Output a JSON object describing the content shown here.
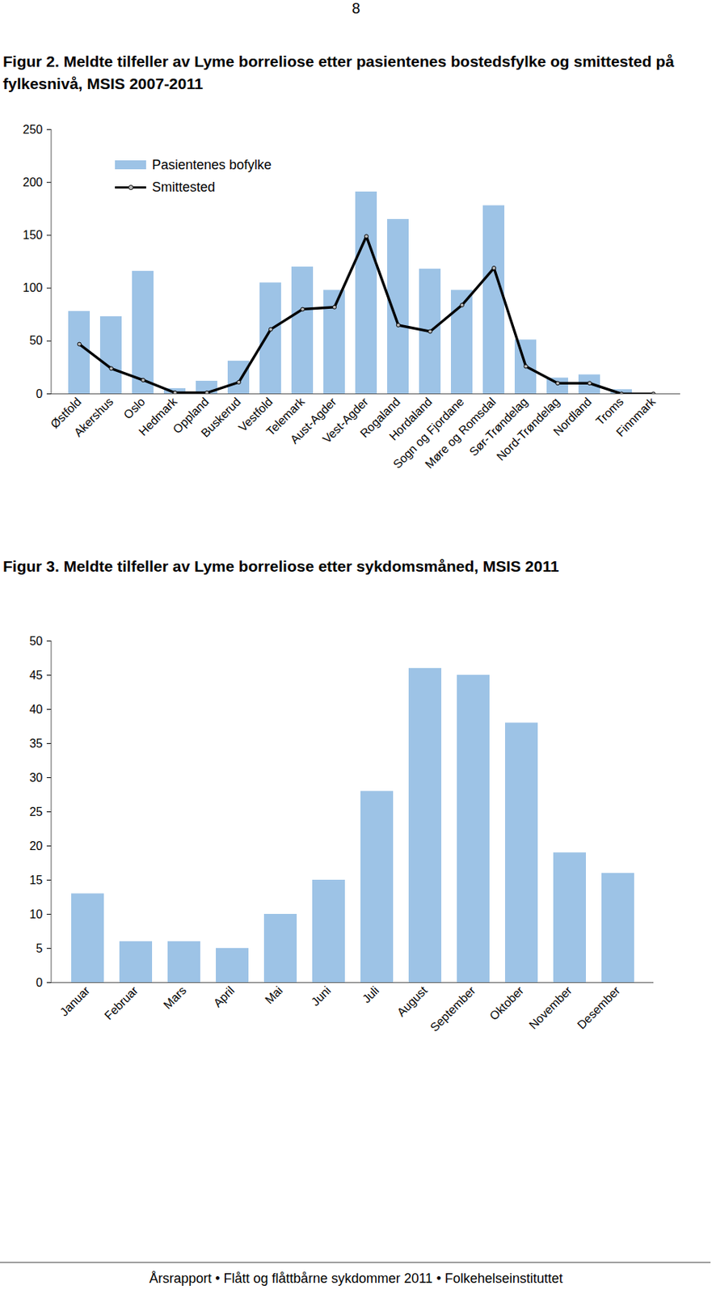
{
  "page_number": 8,
  "footer": "Årsrapport • Flått og flåttbårne sykdommer 2011 • Folkehelseinstituttet",
  "chart_data": [
    {
      "type": "bar",
      "title": "Figur 2. Meldte tilfeller av Lyme borreliose etter pasientenes bostedsfylke og smittested på fylkesnivå, MSIS 2007-2011",
      "categories": [
        "Østfold",
        "Akershus",
        "Oslo",
        "Hedmark",
        "Oppland",
        "Buskerud",
        "Vestfold",
        "Telemark",
        "Aust-Agder",
        "Vest-Agder",
        "Rogaland",
        "Hordaland",
        "Sogn og Fjordane",
        "Møre og Romsdal",
        "Sør-Trøndelag",
        "Nord-Trøndelag",
        "Nordland",
        "Troms",
        "Finnmark"
      ],
      "series": [
        {
          "name": "Pasientenes bofylke",
          "type": "bar",
          "color": "#9dc3e6",
          "values": [
            78,
            73,
            116,
            5,
            12,
            31,
            105,
            120,
            98,
            191,
            165,
            118,
            98,
            178,
            51,
            15,
            18,
            4,
            0
          ]
        },
        {
          "name": "Smittested",
          "type": "line",
          "color": "#000000",
          "marker": "circle",
          "values": [
            47,
            24,
            13,
            1,
            1,
            11,
            61,
            80,
            82,
            149,
            65,
            59,
            84,
            119,
            26,
            10,
            10,
            0,
            0
          ]
        }
      ],
      "ylim": [
        0,
        250
      ],
      "yticks": [
        0,
        50,
        100,
        150,
        200,
        250
      ],
      "legend": "top-left"
    },
    {
      "type": "bar",
      "title": "Figur 3. Meldte tilfeller av Lyme borreliose etter sykdomsmåned, MSIS 2011",
      "categories": [
        "Januar",
        "Februar",
        "Mars",
        "April",
        "Mai",
        "Juni",
        "Juli",
        "August",
        "September",
        "Oktober",
        "November",
        "Desember"
      ],
      "values": [
        13,
        6,
        6,
        5,
        10,
        15,
        28,
        46,
        45,
        38,
        19,
        16
      ],
      "color": "#9dc3e6",
      "ylim": [
        0,
        50
      ],
      "yticks": [
        0,
        5,
        10,
        15,
        20,
        25,
        30,
        35,
        40,
        45,
        50
      ]
    }
  ]
}
